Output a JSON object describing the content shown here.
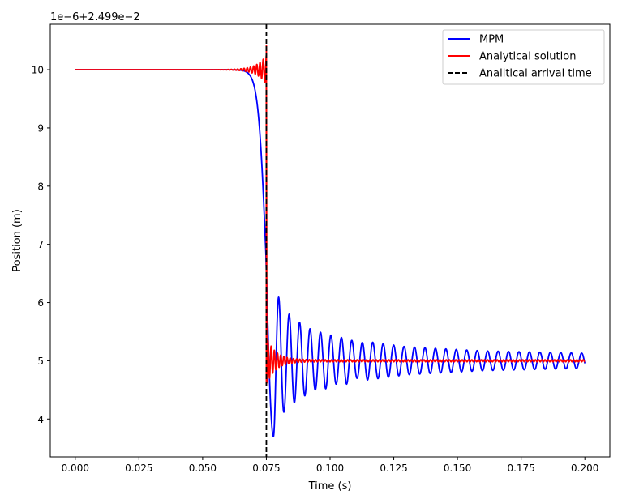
{
  "chart_data": {
    "type": "line",
    "title": "",
    "xlabel": "Time (s)",
    "ylabel": "Position (m)",
    "offset_label": "1e−6+2.499e−2",
    "xlim": [
      -0.0098,
      0.2098
    ],
    "ylim": [
      3.35,
      10.78
    ],
    "x_ticks": [
      0.0,
      0.025,
      0.05,
      0.075,
      0.1,
      0.125,
      0.15,
      0.175,
      0.2
    ],
    "x_tick_labels": [
      "0.000",
      "0.025",
      "0.050",
      "0.075",
      "0.100",
      "0.125",
      "0.150",
      "0.175",
      "0.200"
    ],
    "y_ticks": [
      4,
      5,
      6,
      7,
      8,
      9,
      10
    ],
    "y_tick_labels": [
      "4",
      "5",
      "6",
      "7",
      "8",
      "9",
      "10"
    ],
    "grid": false,
    "legend_position": "top-right",
    "series": [
      {
        "name": "MPM",
        "color": "#0000ff",
        "style": "solid",
        "model": {
          "t0": 0.0,
          "t_end": 0.2,
          "initial": 10.0,
          "final": 5.0,
          "drop_start": 0.064,
          "drop_center": 0.0748,
          "drop_width": 0.0015,
          "period": 0.0041,
          "first_trough_time": 0.0778,
          "first_trough_value": 3.7,
          "peaks": [
            [
              0.0778,
              3.7
            ],
            [
              0.0819,
              5.88
            ],
            [
              0.086,
              4.28
            ],
            [
              0.0901,
              5.6
            ],
            [
              0.0942,
              4.5
            ],
            [
              0.0983,
              5.48
            ],
            [
              0.1024,
              4.6
            ],
            [
              0.1065,
              5.4
            ],
            [
              0.1106,
              4.7
            ],
            [
              0.1147,
              5.33
            ],
            [
              0.13,
              4.76
            ],
            [
              0.16,
              4.83
            ],
            [
              0.2,
              4.87
            ]
          ],
          "end_value": 4.9
        }
      },
      {
        "name": "Analytical solution",
        "color": "#ff0000",
        "style": "solid",
        "model": {
          "t0": 0.0,
          "t_end": 0.2,
          "initial": 10.0,
          "final": 5.0,
          "t_arrival": 0.075,
          "period": 0.00125,
          "pre_amplitude_at_arrival": 0.42,
          "pre_decay": 0.0037,
          "post_amplitude_at_arrival": 0.4,
          "post_decay": 0.0035,
          "post_ripple": 0.05,
          "peak_before_drop": 10.42,
          "dip_after_drop": 4.62
        }
      },
      {
        "name": "Analitical arrival time",
        "color": "#000000",
        "style": "dashed",
        "x": 0.075
      }
    ]
  }
}
